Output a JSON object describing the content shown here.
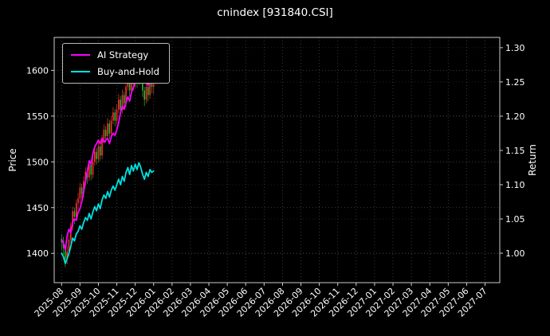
{
  "title": "cnindex [931840.CSI]",
  "colors": {
    "background": "#000000",
    "text": "#ffffff",
    "grid": "#8a8a8a",
    "spine": "#cccccc",
    "candle_up": "#ff3232",
    "candle_down": "#2db52d"
  },
  "legend": {
    "items": [
      {
        "label": "AI Strategy",
        "color": "#ff00ff"
      },
      {
        "label": "Buy-and-Hold",
        "color": "#00e0e0"
      }
    ]
  },
  "chart_data": {
    "type": "line+candlestick",
    "title": "cnindex [931840.CSI]",
    "xlabel": "",
    "ylabel_left": "Price",
    "ylabel_right": "Return",
    "grid": true,
    "legend_position": "upper left",
    "x_ticks": [
      "2025-08",
      "2025-09",
      "2025-10",
      "2025-11",
      "2025-12",
      "2026-01",
      "2026-02",
      "2026-03",
      "2026-04",
      "2026-05",
      "2026-06",
      "2026-07",
      "2026-08",
      "2026-09",
      "2026-10",
      "2026-11",
      "2026-12",
      "2027-01",
      "2027-02",
      "2027-03",
      "2027-04",
      "2027-05",
      "2027-06",
      "2027-07"
    ],
    "xlim_months": [
      -0.4,
      23.8
    ],
    "price_ylim": [
      1368,
      1636
    ],
    "price_ticks": [
      1400,
      1450,
      1500,
      1550,
      1600
    ],
    "return_ylim": [
      0.957,
      1.315
    ],
    "return_ticks": [
      1.0,
      1.05,
      1.1,
      1.15,
      1.2,
      1.25,
      1.3
    ],
    "return_tick_labels": [
      "1.00",
      "1.05",
      "1.10",
      "1.15",
      "1.20",
      "1.25",
      "1.30"
    ],
    "x": [
      0,
      0.1,
      0.2,
      0.3,
      0.4,
      0.5,
      0.6,
      0.7,
      0.8,
      0.9,
      1,
      1.1,
      1.2,
      1.3,
      1.4,
      1.5,
      1.6,
      1.7,
      1.8,
      1.9,
      2,
      2.1,
      2.2,
      2.3,
      2.4,
      2.5,
      2.6,
      2.7,
      2.8,
      2.9,
      3,
      3.1,
      3.2,
      3.3,
      3.4,
      3.5,
      3.6,
      3.7,
      3.8,
      3.9,
      4,
      4.1,
      4.2,
      4.3,
      4.4,
      4.5,
      4.6,
      4.7,
      4.8,
      4.9,
      5
    ],
    "series": [
      {
        "name": "AI Strategy",
        "axis": "return",
        "color": "#ff00ff",
        "y": [
          1.02,
          1.015,
          1.005,
          1.025,
          1.035,
          1.03,
          1.045,
          1.05,
          1.048,
          1.06,
          1.065,
          1.075,
          1.09,
          1.105,
          1.12,
          1.135,
          1.13,
          1.145,
          1.155,
          1.16,
          1.165,
          1.16,
          1.168,
          1.162,
          1.165,
          1.168,
          1.16,
          1.17,
          1.175,
          1.172,
          1.18,
          1.19,
          1.205,
          1.215,
          1.21,
          1.22,
          1.228,
          1.222,
          1.235,
          1.242,
          1.248,
          1.255,
          1.248,
          1.258,
          1.252,
          1.26,
          1.25,
          1.245,
          1.252,
          1.248,
          1.25
        ]
      },
      {
        "name": "Buy-and-Hold",
        "axis": "return",
        "color": "#00e0e0",
        "y": [
          1.0,
          0.995,
          0.985,
          0.992,
          1.0,
          1.01,
          1.022,
          1.018,
          1.028,
          1.032,
          1.04,
          1.035,
          1.045,
          1.052,
          1.048,
          1.058,
          1.05,
          1.06,
          1.068,
          1.062,
          1.072,
          1.065,
          1.078,
          1.085,
          1.08,
          1.09,
          1.082,
          1.092,
          1.098,
          1.092,
          1.1,
          1.108,
          1.1,
          1.112,
          1.105,
          1.118,
          1.125,
          1.115,
          1.128,
          1.12,
          1.13,
          1.122,
          1.132,
          1.125,
          1.115,
          1.108,
          1.118,
          1.112,
          1.122,
          1.118,
          1.12
        ]
      }
    ],
    "candles": {
      "axis": "price",
      "open": [
        1416,
        1412,
        1406,
        1394,
        1402,
        1415,
        1429,
        1446,
        1440,
        1455,
        1460,
        1472,
        1465,
        1479,
        1489,
        1483,
        1497,
        1486,
        1500,
        1511,
        1503,
        1517,
        1507,
        1525,
        1535,
        1528,
        1542,
        1531,
        1545,
        1554,
        1545,
        1557,
        1568,
        1557,
        1573,
        1564,
        1582,
        1592,
        1578,
        1596,
        1585,
        1599,
        1588,
        1596,
        1592,
        1578,
        1568,
        1582,
        1573,
        1588,
        1582
      ],
      "high": [
        1421,
        1418,
        1410,
        1408,
        1420,
        1434,
        1451,
        1450,
        1459,
        1466,
        1477,
        1476,
        1484,
        1494,
        1493,
        1502,
        1501,
        1505,
        1516,
        1515,
        1522,
        1521,
        1530,
        1541,
        1539,
        1548,
        1546,
        1550,
        1560,
        1558,
        1563,
        1574,
        1572,
        1579,
        1577,
        1588,
        1599,
        1596,
        1602,
        1600,
        1605,
        1603,
        1601,
        1600,
        1596,
        1582,
        1587,
        1586,
        1593,
        1592,
        1590
      ],
      "low": [
        1403,
        1398,
        1385,
        1388,
        1398,
        1411,
        1425,
        1432,
        1436,
        1448,
        1455,
        1458,
        1461,
        1474,
        1476,
        1479,
        1480,
        1482,
        1496,
        1497,
        1499,
        1501,
        1503,
        1520,
        1521,
        1524,
        1525,
        1527,
        1541,
        1539,
        1541,
        1553,
        1550,
        1553,
        1557,
        1560,
        1578,
        1571,
        1574,
        1578,
        1581,
        1581,
        1584,
        1585,
        1571,
        1561,
        1564,
        1566,
        1569,
        1575,
        1574
      ],
      "close": [
        1412,
        1406,
        1394,
        1402,
        1415,
        1429,
        1446,
        1440,
        1455,
        1460,
        1472,
        1465,
        1479,
        1489,
        1483,
        1497,
        1486,
        1500,
        1511,
        1503,
        1517,
        1507,
        1525,
        1535,
        1528,
        1542,
        1531,
        1545,
        1554,
        1545,
        1557,
        1568,
        1557,
        1573,
        1564,
        1582,
        1592,
        1578,
        1596,
        1585,
        1599,
        1588,
        1596,
        1592,
        1578,
        1568,
        1582,
        1573,
        1588,
        1582,
        1585
      ]
    }
  }
}
